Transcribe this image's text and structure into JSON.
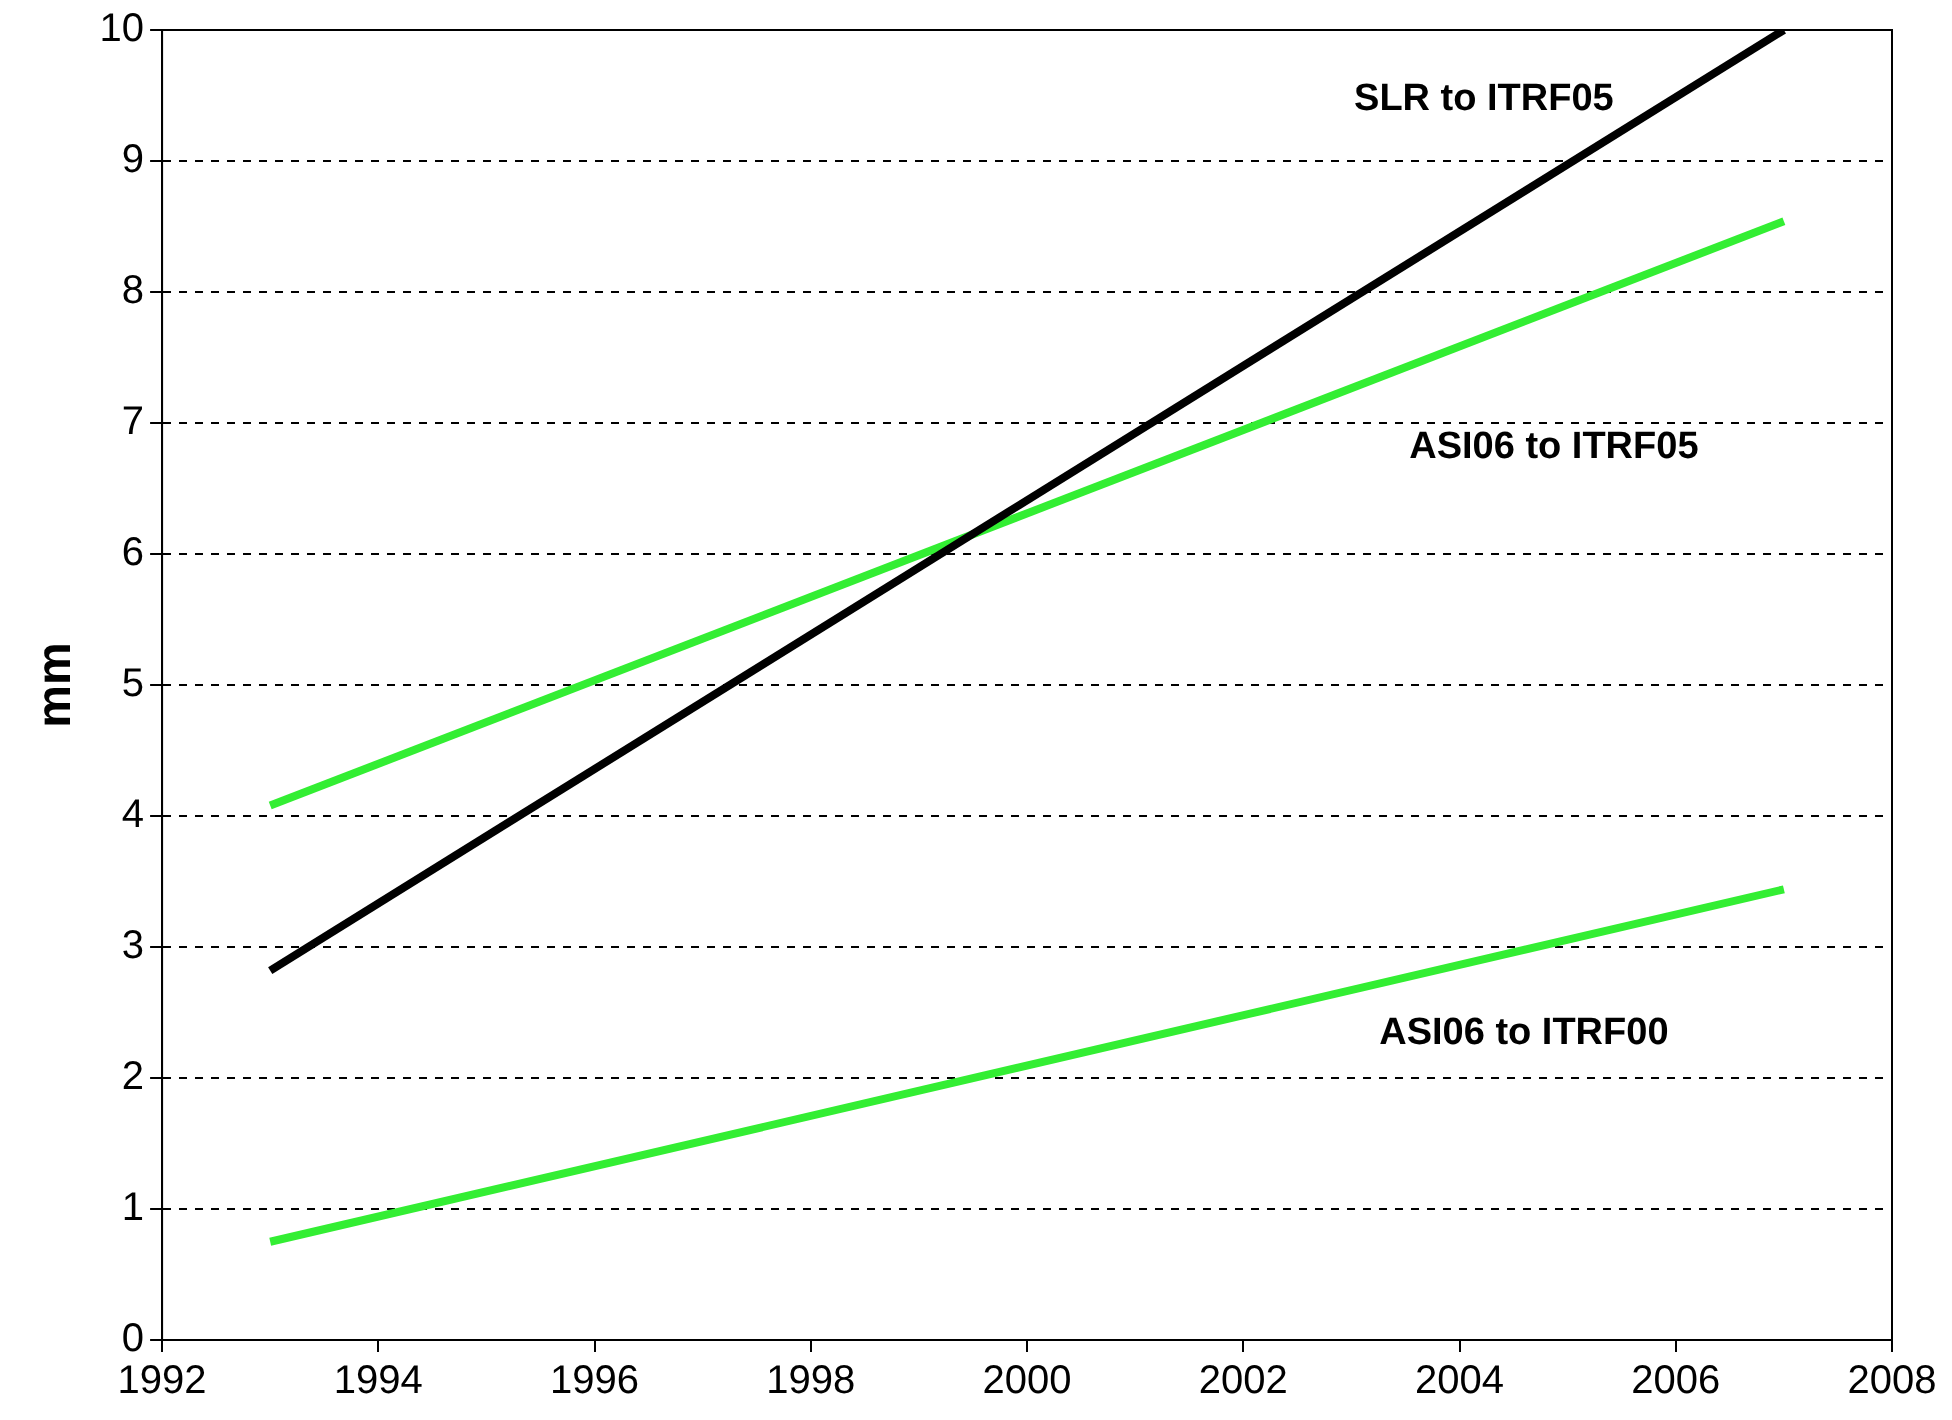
{
  "chart_data": {
    "type": "line",
    "ylabel": "mm",
    "x": [
      1993,
      2007
    ],
    "series": [
      {
        "name": "SLR to ITRF05",
        "color": "#000000",
        "values": [
          2.82,
          10.0
        ]
      },
      {
        "name": "ASI06 to ITRF05",
        "color": "#33ee33",
        "values": [
          4.08,
          8.54
        ]
      },
      {
        "name": "ASI06 to ITRF00",
        "color": "#33ee33",
        "values": [
          0.75,
          3.44
        ]
      }
    ],
    "xlim": [
      1992,
      2008
    ],
    "xticks": [
      1992,
      1994,
      1996,
      1998,
      2000,
      2002,
      2004,
      2006,
      2008
    ],
    "ylim": [
      0,
      10
    ],
    "yticks": [
      0,
      1,
      2,
      3,
      4,
      5,
      6,
      7,
      8,
      9,
      10
    ],
    "grid": "y",
    "legend": false,
    "marker": "none",
    "line_style": "solid"
  }
}
